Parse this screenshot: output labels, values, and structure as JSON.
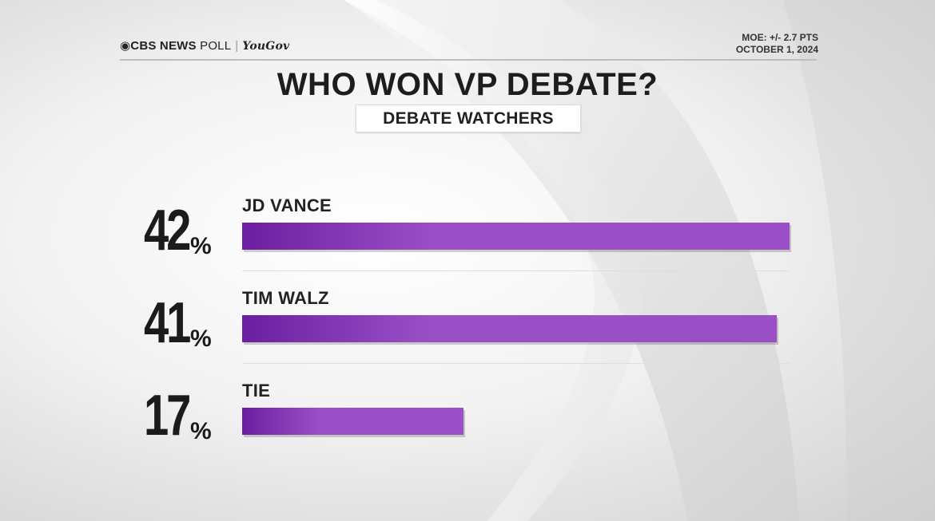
{
  "header": {
    "brand_primary": "CBS NEWS",
    "brand_secondary": "POLL",
    "brand_partner": "YouGov",
    "moe": "MOE: +/- 2.7 PTS",
    "date": "OCTOBER 1, 2024"
  },
  "colors": {
    "bar_start": "#6a1fa0",
    "bar_end": "#9b4fc6",
    "text": "#1b1b1b"
  },
  "chart_data": {
    "type": "bar",
    "orientation": "horizontal",
    "title": "WHO WON VP DEBATE?",
    "subtitle": "DEBATE WATCHERS",
    "categories": [
      "JD VANCE",
      "TIM WALZ",
      "TIE"
    ],
    "values": [
      42,
      41,
      17
    ],
    "value_labels": [
      "42",
      "41",
      "17"
    ],
    "unit": "%",
    "xlim": [
      0,
      42
    ],
    "grid": false,
    "legend": "none"
  }
}
